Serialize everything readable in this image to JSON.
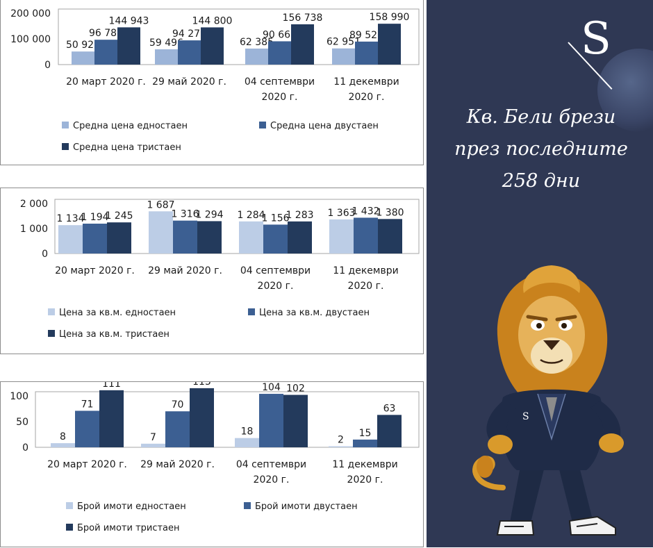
{
  "title": {
    "lines": [
      "Кв. Бели брези",
      "през последните",
      "258 дни"
    ]
  },
  "logo": {
    "letter": "S"
  },
  "colors": {
    "one_room": "#9cb4d8",
    "one_room_sqm": "#bccde6",
    "two_room": "#3c5f92",
    "three_room": "#233a5c",
    "panel": "#2f3854"
  },
  "chart_data": [
    {
      "type": "bar",
      "categories": [
        [
          "20 март 2020 г."
        ],
        [
          "29 май 2020 г."
        ],
        [
          "04 септември",
          "2020 г."
        ],
        [
          "11 декември",
          "2020 г."
        ]
      ],
      "y_ticks": [
        "200 000",
        "100 000",
        "0"
      ],
      "ylim": [
        0,
        200000
      ],
      "series": [
        {
          "name": "Средна цена едностаен",
          "values": [
            50923,
            59496,
            62385,
            62951
          ],
          "labels": [
            "50 923",
            "59 496",
            "62 385",
            "62 951"
          ],
          "color": "#9cb4d8"
        },
        {
          "name": "Средна цена двустаен",
          "values": [
            96786,
            94276,
            90667,
            89523
          ],
          "labels": [
            "96 786",
            "94 276",
            "90 667",
            "89 523"
          ],
          "color": "#3c5f92"
        },
        {
          "name": "Средна цена тристаен",
          "values": [
            144943,
            144800,
            156738,
            158990
          ],
          "labels": [
            "144 943",
            "144 800",
            "156 738",
            "158 990"
          ],
          "color": "#233a5c"
        }
      ],
      "legend": "bottom",
      "grid": false
    },
    {
      "type": "bar",
      "categories": [
        [
          "20 март 2020 г."
        ],
        [
          "29 май 2020 г."
        ],
        [
          "04 септември",
          "2020 г."
        ],
        [
          "11 декември",
          "2020 г."
        ]
      ],
      "y_ticks": [
        "2 000",
        "1 000",
        "0"
      ],
      "ylim": [
        0,
        2000
      ],
      "series": [
        {
          "name": "Цена за кв.м. едностаен",
          "values": [
            1134,
            1687,
            1284,
            1363
          ],
          "labels": [
            "1 134",
            "1 687",
            "1 284",
            "1 363"
          ],
          "color": "#bccde6"
        },
        {
          "name": "Цена за кв.м. двустаен",
          "values": [
            1194,
            1316,
            1156,
            1432
          ],
          "labels": [
            "1 194",
            "1 316",
            "1 156",
            "1 432"
          ],
          "color": "#3c5f92"
        },
        {
          "name": "Цена за кв.м. тристаен",
          "values": [
            1245,
            1294,
            1283,
            1380
          ],
          "labels": [
            "1 245",
            "1 294",
            "1 283",
            "1 380"
          ],
          "color": "#233a5c"
        }
      ],
      "legend": "bottom",
      "grid": false
    },
    {
      "type": "bar",
      "categories": [
        [
          "20 март 2020 г."
        ],
        [
          "29 май 2020 г."
        ],
        [
          "04 септември",
          "2020 г."
        ],
        [
          "11 декември",
          "2020 г."
        ]
      ],
      "y_ticks": [
        "100",
        "50",
        "0"
      ],
      "ylim": [
        0,
        100
      ],
      "series": [
        {
          "name": "Брой имоти едностаен",
          "values": [
            8,
            7,
            18,
            2
          ],
          "labels": [
            "8",
            "7",
            "18",
            "2"
          ],
          "color": "#bccde6"
        },
        {
          "name": "Брой имоти двустаен",
          "values": [
            71,
            70,
            104,
            15
          ],
          "labels": [
            "71",
            "70",
            "104",
            "15"
          ],
          "color": "#3c5f92"
        },
        {
          "name": "Брой имоти тристаен",
          "values": [
            111,
            115,
            102,
            63
          ],
          "labels": [
            "111",
            "115",
            "102",
            "63"
          ],
          "color": "#233a5c"
        }
      ],
      "legend": "bottom",
      "grid": false
    }
  ]
}
